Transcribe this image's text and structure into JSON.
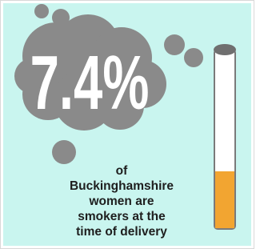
{
  "stat": "7.4%",
  "caption": [
    "of",
    "Buckinghamshire",
    "women are",
    "smokers at the",
    "time of delivery"
  ]
}
